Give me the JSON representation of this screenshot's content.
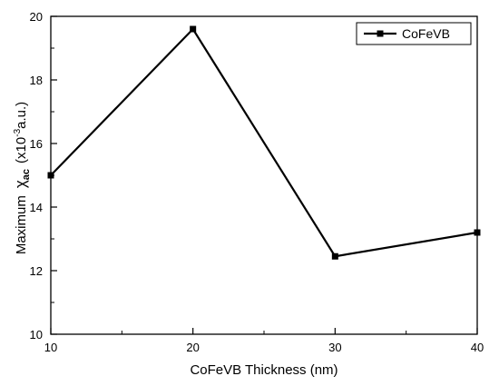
{
  "chart_data": {
    "type": "line",
    "x": [
      10,
      20,
      30,
      40
    ],
    "series": [
      {
        "name": "CoFeVB",
        "values": [
          15.0,
          19.6,
          12.45,
          13.2
        ],
        "color": "#000000",
        "marker": "square"
      }
    ],
    "xlabel": "CoFeVB Thickness (nm)",
    "ylabel": {
      "prefix": "Maximum",
      "symbol": "χ",
      "subscript": "ac",
      "unit_open": "(x10",
      "exponent": "-3",
      "unit_close": "a.u.)"
    },
    "xlim": [
      10,
      40
    ],
    "ylim": [
      10,
      20
    ],
    "xticks": [
      10,
      20,
      30,
      40
    ],
    "yticks": [
      10,
      12,
      14,
      16,
      18,
      20
    ],
    "grid": false,
    "legend_position": "top-right"
  }
}
